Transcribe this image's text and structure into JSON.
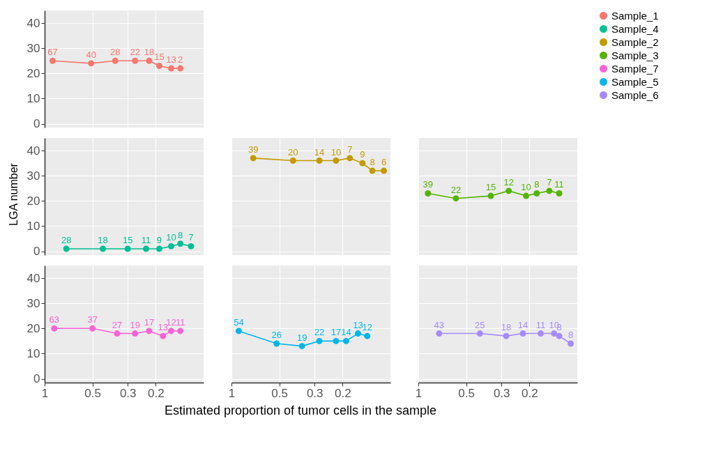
{
  "chart_data": [
    {
      "type": "line",
      "legend": "right",
      "marker": "circle",
      "grid": true,
      "tick_labels": "y",
      "log": "x",
      "xlim": [
        1,
        0.1
      ],
      "xticks": [
        1,
        0.5,
        0.3,
        0.2
      ],
      "ylim": [
        -1.5,
        45
      ],
      "yticks": [
        0,
        10,
        20,
        30,
        40
      ],
      "series": [
        {
          "name": "Sample_1",
          "color": "#f8766d",
          "x": [
            0.89,
            0.51,
            0.36,
            0.27,
            0.22,
            0.19,
            0.16,
            0.14
          ],
          "values": [
            25,
            24,
            25,
            25,
            25,
            23,
            22,
            22
          ]
        }
      ],
      "annotations": [
        {
          "text": "67",
          "x": 0.89,
          "y": 25
        },
        {
          "text": "40",
          "x": 0.51,
          "y": 24
        },
        {
          "text": "28",
          "x": 0.36,
          "y": 25
        },
        {
          "text": "22",
          "x": 0.27,
          "y": 25
        },
        {
          "text": "18",
          "x": 0.22,
          "y": 25
        },
        {
          "text": "15",
          "x": 0.19,
          "y": 23
        },
        {
          "text": "13",
          "x": 0.16,
          "y": 22
        },
        {
          "text": "2",
          "x": 0.14,
          "y": 22
        }
      ]
    },
    {
      "type": "line",
      "marker": "circle",
      "grid": true,
      "tick_labels": "y",
      "log": "x",
      "ylabel": "LGA number",
      "xlim": [
        1,
        0.1
      ],
      "xticks": [
        1,
        0.5,
        0.3,
        0.2
      ],
      "ylim": [
        -1.5,
        45
      ],
      "yticks": [
        0,
        10,
        20,
        30,
        40
      ],
      "series": [
        {
          "name": "Sample_4",
          "color": "#00c094",
          "x": [
            0.73,
            0.43,
            0.3,
            0.23,
            0.19,
            0.16,
            0.14,
            0.12
          ],
          "values": [
            1,
            1,
            1,
            1,
            1,
            2,
            3,
            2
          ]
        }
      ],
      "annotations": [
        {
          "text": "28",
          "x": 0.73,
          "y": 1
        },
        {
          "text": "18",
          "x": 0.43,
          "y": 1
        },
        {
          "text": "15",
          "x": 0.3,
          "y": 1
        },
        {
          "text": "11",
          "x": 0.23,
          "y": 1
        },
        {
          "text": "9",
          "x": 0.19,
          "y": 1
        },
        {
          "text": "10",
          "x": 0.16,
          "y": 2
        },
        {
          "text": "8",
          "x": 0.14,
          "y": 3
        },
        {
          "text": "7",
          "x": 0.12,
          "y": 2
        }
      ]
    },
    {
      "type": "line",
      "marker": "circle",
      "grid": true,
      "tick_labels": false,
      "log": "x",
      "xlim": [
        1,
        0.1
      ],
      "xticks": [
        1,
        0.5,
        0.3,
        0.2
      ],
      "ylim": [
        -1.5,
        45
      ],
      "yticks": [
        0,
        10,
        20,
        30,
        40
      ],
      "series": [
        {
          "name": "Sample_2",
          "color": "#c49a00",
          "x": [
            0.73,
            0.41,
            0.28,
            0.22,
            0.18,
            0.15,
            0.13,
            0.11
          ],
          "values": [
            37,
            36,
            36,
            36,
            37,
            35,
            32,
            32
          ]
        }
      ],
      "annotations": [
        {
          "text": "39",
          "x": 0.73,
          "y": 37
        },
        {
          "text": "20",
          "x": 0.41,
          "y": 36
        },
        {
          "text": "14",
          "x": 0.28,
          "y": 36
        },
        {
          "text": "10",
          "x": 0.22,
          "y": 36
        },
        {
          "text": "7",
          "x": 0.18,
          "y": 37
        },
        {
          "text": "9",
          "x": 0.15,
          "y": 35
        },
        {
          "text": "8",
          "x": 0.13,
          "y": 32
        },
        {
          "text": "6",
          "x": 0.11,
          "y": 32
        }
      ]
    },
    {
      "type": "line",
      "marker": "circle",
      "grid": true,
      "tick_labels": false,
      "log": "x",
      "xlim": [
        1,
        0.1
      ],
      "xticks": [
        1,
        0.5,
        0.3,
        0.2
      ],
      "ylim": [
        -1.5,
        45
      ],
      "yticks": [
        0,
        10,
        20,
        30,
        40
      ],
      "series": [
        {
          "name": "Sample_3",
          "color": "#53b400",
          "x": [
            0.87,
            0.58,
            0.35,
            0.27,
            0.21,
            0.18,
            0.15,
            0.13
          ],
          "values": [
            23,
            21,
            22,
            24,
            22,
            23,
            24,
            23
          ]
        }
      ],
      "annotations": [
        {
          "text": "39",
          "x": 0.87,
          "y": 23
        },
        {
          "text": "22",
          "x": 0.58,
          "y": 21
        },
        {
          "text": "15",
          "x": 0.35,
          "y": 22
        },
        {
          "text": "12",
          "x": 0.27,
          "y": 24
        },
        {
          "text": "10",
          "x": 0.21,
          "y": 22
        },
        {
          "text": "8",
          "x": 0.18,
          "y": 23
        },
        {
          "text": "7",
          "x": 0.15,
          "y": 24
        },
        {
          "text": "11",
          "x": 0.13,
          "y": 23
        }
      ]
    },
    {
      "type": "line",
      "marker": "circle",
      "grid": true,
      "log": "x",
      "xlim": [
        1,
        0.1
      ],
      "xticks": [
        1,
        0.5,
        0.3,
        0.2
      ],
      "ylim": [
        -1.5,
        45
      ],
      "yticks": [
        0,
        10,
        20,
        30,
        40
      ],
      "series": [
        {
          "name": "Sample_7",
          "color": "#fb61d7",
          "x": [
            0.87,
            0.5,
            0.35,
            0.27,
            0.22,
            0.18,
            0.16,
            0.14
          ],
          "values": [
            20,
            20,
            18,
            18,
            19,
            17,
            19,
            19
          ]
        }
      ],
      "annotations": [
        {
          "text": "63",
          "x": 0.87,
          "y": 20
        },
        {
          "text": "37",
          "x": 0.5,
          "y": 20
        },
        {
          "text": "27",
          "x": 0.35,
          "y": 18
        },
        {
          "text": "19",
          "x": 0.27,
          "y": 18
        },
        {
          "text": "17",
          "x": 0.22,
          "y": 19
        },
        {
          "text": "13",
          "x": 0.18,
          "y": 17
        },
        {
          "text": "12",
          "x": 0.16,
          "y": 19
        },
        {
          "text": "11",
          "x": 0.14,
          "y": 19
        }
      ]
    },
    {
      "type": "line",
      "marker": "circle",
      "grid": true,
      "tick_labels": "x",
      "log": "x",
      "xlabel": "Estimated proportion of tumor cells in the sample",
      "xlim": [
        1,
        0.1
      ],
      "xticks": [
        1,
        0.5,
        0.3,
        0.2
      ],
      "ylim": [
        -1.5,
        45
      ],
      "yticks": [
        0,
        10,
        20,
        30,
        40
      ],
      "series": [
        {
          "name": "Sample_5",
          "color": "#00b6eb",
          "x": [
            0.9,
            0.52,
            0.36,
            0.28,
            0.22,
            0.19,
            0.16,
            0.14
          ],
          "values": [
            19,
            14,
            13,
            15,
            15,
            15,
            18,
            17
          ]
        }
      ],
      "annotations": [
        {
          "text": "54",
          "x": 0.9,
          "y": 19
        },
        {
          "text": "26",
          "x": 0.52,
          "y": 14
        },
        {
          "text": "19",
          "x": 0.36,
          "y": 13
        },
        {
          "text": "22",
          "x": 0.28,
          "y": 15
        },
        {
          "text": "17",
          "x": 0.22,
          "y": 15
        },
        {
          "text": "14",
          "x": 0.19,
          "y": 15
        },
        {
          "text": "13",
          "x": 0.16,
          "y": 18
        },
        {
          "text": "12",
          "x": 0.14,
          "y": 17
        }
      ]
    },
    {
      "type": "line",
      "marker": "circle",
      "grid": true,
      "tick_labels": "x",
      "log": "x",
      "xlim": [
        1,
        0.1
      ],
      "xticks": [
        1,
        0.5,
        0.3,
        0.2
      ],
      "ylim": [
        -1.5,
        45
      ],
      "yticks": [
        0,
        10,
        20,
        30,
        40
      ],
      "series": [
        {
          "name": "Sample_6",
          "color": "#a58aff",
          "x": [
            0.74,
            0.41,
            0.28,
            0.22,
            0.17,
            0.14,
            0.13,
            0.11
          ],
          "values": [
            18,
            18,
            17,
            18,
            18,
            18,
            17,
            14
          ]
        }
      ],
      "annotations": [
        {
          "text": "43",
          "x": 0.74,
          "y": 18
        },
        {
          "text": "25",
          "x": 0.41,
          "y": 18
        },
        {
          "text": "18",
          "x": 0.28,
          "y": 17
        },
        {
          "text": "14",
          "x": 0.22,
          "y": 18
        },
        {
          "text": "11",
          "x": 0.17,
          "y": 18
        },
        {
          "text": "10",
          "x": 0.14,
          "y": 18
        },
        {
          "text": "8",
          "x": 0.13,
          "y": 17
        },
        {
          "text": "8",
          "x": 0.11,
          "y": 14
        }
      ]
    }
  ]
}
